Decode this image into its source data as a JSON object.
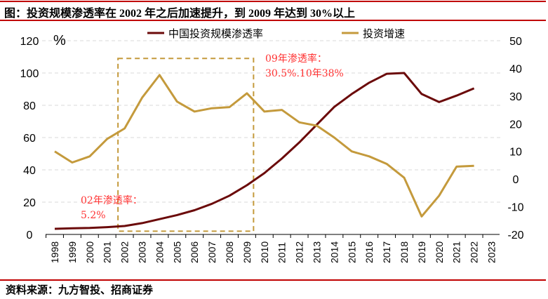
{
  "title": "图：投资规模渗透率在 2002 年之后加速提升，到 2009 年达到 30%以上",
  "source": "资料来源：九方智投、招商证券",
  "chart_data": {
    "type": "line",
    "left_unit": "%",
    "x": [
      1998,
      1999,
      2000,
      2001,
      2002,
      2003,
      2004,
      2005,
      2006,
      2007,
      2008,
      2009,
      2010,
      2011,
      2012,
      2013,
      2014,
      2015,
      2016,
      2017,
      2018,
      2019,
      2020,
      2021,
      2022
    ],
    "x_ticks": [
      "1998",
      "1999",
      "2000",
      "2001",
      "2002",
      "2003",
      "2004",
      "2005",
      "2006",
      "2007",
      "2008",
      "2009",
      "2010",
      "2011",
      "2012",
      "2013",
      "2014",
      "2015",
      "2016",
      "2017",
      "2018",
      "2019",
      "2020",
      "2021",
      "2022",
      "2023"
    ],
    "ylim_left": [
      0,
      120
    ],
    "yticks_left": [
      "0",
      "20",
      "40",
      "60",
      "80",
      "100",
      "120"
    ],
    "ylim_right": [
      -20,
      50
    ],
    "yticks_right": [
      "-20",
      "-10",
      "0",
      "10",
      "20",
      "30",
      "40",
      "50"
    ],
    "series": [
      {
        "name": "中国投资规模渗透率",
        "axis": "left",
        "color": "#6b0a0a",
        "values": [
          3.5,
          3.8,
          4,
          4.5,
          5.2,
          7,
          9.5,
          12,
          15,
          19,
          24,
          30.5,
          38,
          47,
          57,
          68,
          79,
          87,
          94,
          99.5,
          100,
          87,
          82,
          86,
          90.5
        ]
      },
      {
        "name": "投资增速",
        "axis": "right",
        "color": "#c49a3c",
        "values": [
          10,
          6,
          8.2,
          14.5,
          18.3,
          29.4,
          37.6,
          28,
          24.4,
          25.6,
          26,
          31,
          24.4,
          25,
          20.5,
          19.3,
          15,
          10,
          8.2,
          5.5,
          0.5,
          -13.5,
          -6,
          4.5,
          4.8
        ]
      }
    ],
    "annotations": [
      {
        "line1": "02年渗透率：",
        "line2": "5.2%"
      },
      {
        "line1": "09年渗透率：",
        "line2": "30.5%.10年38%"
      }
    ],
    "highlight_range": [
      2002,
      2009
    ],
    "grid": "horizontal dashed",
    "legend": "top-center"
  }
}
